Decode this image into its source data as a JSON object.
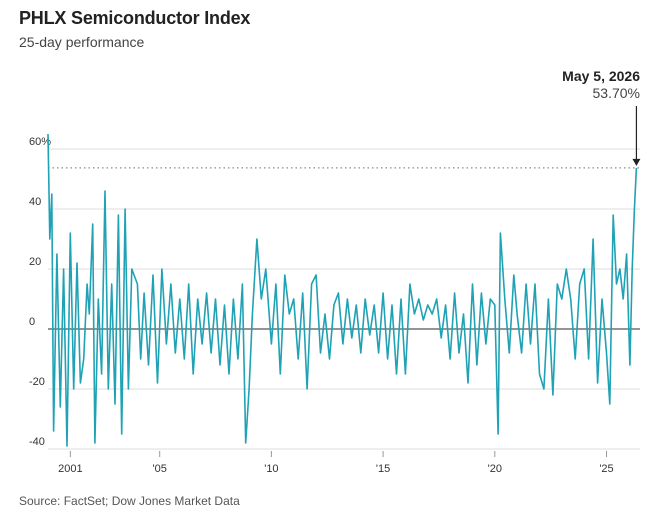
{
  "header": {
    "title": "PHLX Semiconductor Index",
    "subtitle": "25-day performance"
  },
  "footer": {
    "source": "Source: FactSet; Dow Jones Market Data"
  },
  "annotation": {
    "date": "May 5, 2026",
    "value": "53.70%"
  },
  "colors": {
    "line": "#1fa2b4",
    "grid": "#dcdcdc",
    "zero": "#555555",
    "reference": "#888888"
  },
  "chart_data": {
    "type": "line",
    "title": "PHLX Semiconductor Index",
    "subtitle": "25-day performance",
    "unit": "%",
    "x_ticks": [
      {
        "value": 2001,
        "label": "2001"
      },
      {
        "value": 2005,
        "label": "'05"
      },
      {
        "value": 2010,
        "label": "'10"
      },
      {
        "value": 2015,
        "label": "'15"
      },
      {
        "value": 2020,
        "label": "'20"
      },
      {
        "value": 2025,
        "label": "'25"
      }
    ],
    "y_ticks": [
      {
        "value": 60,
        "label": "60%"
      },
      {
        "value": 40,
        "label": "40"
      },
      {
        "value": 20,
        "label": "20"
      },
      {
        "value": 0,
        "label": "0"
      },
      {
        "value": -20,
        "label": "-20"
      },
      {
        "value": -40,
        "label": "-40"
      }
    ],
    "xlim": [
      2000.0,
      2026.5
    ],
    "ylim": [
      -40,
      60
    ],
    "reference_value": 53.7,
    "series": [
      {
        "values": [
          [
            2000.0,
            65
          ],
          [
            2000.08,
            30
          ],
          [
            2000.17,
            45
          ],
          [
            2000.25,
            -34
          ],
          [
            2000.4,
            25
          ],
          [
            2000.55,
            -26
          ],
          [
            2000.7,
            20
          ],
          [
            2000.85,
            -39
          ],
          [
            2001.0,
            32
          ],
          [
            2001.15,
            -20
          ],
          [
            2001.3,
            22
          ],
          [
            2001.45,
            -18
          ],
          [
            2001.6,
            -10
          ],
          [
            2001.75,
            15
          ],
          [
            2001.85,
            5
          ],
          [
            2002.0,
            35
          ],
          [
            2002.1,
            -38
          ],
          [
            2002.25,
            10
          ],
          [
            2002.4,
            -15
          ],
          [
            2002.55,
            46
          ],
          [
            2002.7,
            -20
          ],
          [
            2002.85,
            15
          ],
          [
            2003.0,
            -25
          ],
          [
            2003.15,
            38
          ],
          [
            2003.3,
            -35
          ],
          [
            2003.45,
            40
          ],
          [
            2003.6,
            -20
          ],
          [
            2003.75,
            20
          ],
          [
            2004.0,
            15
          ],
          [
            2004.15,
            -10
          ],
          [
            2004.3,
            12
          ],
          [
            2004.5,
            -12
          ],
          [
            2004.7,
            18
          ],
          [
            2004.9,
            -18
          ],
          [
            2005.1,
            20
          ],
          [
            2005.3,
            -5
          ],
          [
            2005.5,
            15
          ],
          [
            2005.7,
            -8
          ],
          [
            2005.9,
            10
          ],
          [
            2006.1,
            -10
          ],
          [
            2006.3,
            15
          ],
          [
            2006.5,
            -15
          ],
          [
            2006.7,
            10
          ],
          [
            2006.9,
            -5
          ],
          [
            2007.1,
            12
          ],
          [
            2007.3,
            -8
          ],
          [
            2007.5,
            10
          ],
          [
            2007.7,
            -12
          ],
          [
            2007.9,
            8
          ],
          [
            2008.1,
            -15
          ],
          [
            2008.3,
            10
          ],
          [
            2008.5,
            -10
          ],
          [
            2008.7,
            15
          ],
          [
            2008.85,
            -38
          ],
          [
            2009.0,
            -20
          ],
          [
            2009.15,
            5
          ],
          [
            2009.35,
            30
          ],
          [
            2009.55,
            10
          ],
          [
            2009.75,
            20
          ],
          [
            2010.0,
            -5
          ],
          [
            2010.2,
            15
          ],
          [
            2010.4,
            -15
          ],
          [
            2010.6,
            18
          ],
          [
            2010.8,
            5
          ],
          [
            2011.0,
            10
          ],
          [
            2011.2,
            -10
          ],
          [
            2011.4,
            12
          ],
          [
            2011.6,
            -20
          ],
          [
            2011.8,
            15
          ],
          [
            2012.0,
            18
          ],
          [
            2012.2,
            -8
          ],
          [
            2012.4,
            5
          ],
          [
            2012.6,
            -10
          ],
          [
            2012.8,
            8
          ],
          [
            2013.0,
            12
          ],
          [
            2013.2,
            -5
          ],
          [
            2013.4,
            10
          ],
          [
            2013.6,
            -3
          ],
          [
            2013.8,
            8
          ],
          [
            2014.0,
            -8
          ],
          [
            2014.2,
            10
          ],
          [
            2014.4,
            -2
          ],
          [
            2014.6,
            8
          ],
          [
            2014.8,
            -8
          ],
          [
            2015.0,
            12
          ],
          [
            2015.2,
            -10
          ],
          [
            2015.4,
            8
          ],
          [
            2015.6,
            -15
          ],
          [
            2015.8,
            10
          ],
          [
            2016.0,
            -15
          ],
          [
            2016.2,
            15
          ],
          [
            2016.4,
            5
          ],
          [
            2016.6,
            10
          ],
          [
            2016.8,
            3
          ],
          [
            2017.0,
            8
          ],
          [
            2017.2,
            5
          ],
          [
            2017.4,
            10
          ],
          [
            2017.6,
            -3
          ],
          [
            2017.8,
            8
          ],
          [
            2018.0,
            -10
          ],
          [
            2018.2,
            12
          ],
          [
            2018.4,
            -8
          ],
          [
            2018.6,
            5
          ],
          [
            2018.8,
            -18
          ],
          [
            2019.0,
            15
          ],
          [
            2019.2,
            -12
          ],
          [
            2019.4,
            12
          ],
          [
            2019.6,
            -5
          ],
          [
            2019.8,
            10
          ],
          [
            2020.0,
            8
          ],
          [
            2020.15,
            -35
          ],
          [
            2020.25,
            32
          ],
          [
            2020.45,
            10
          ],
          [
            2020.65,
            -8
          ],
          [
            2020.85,
            18
          ],
          [
            2021.0,
            5
          ],
          [
            2021.2,
            -8
          ],
          [
            2021.4,
            15
          ],
          [
            2021.6,
            -5
          ],
          [
            2021.8,
            15
          ],
          [
            2022.0,
            -15
          ],
          [
            2022.2,
            -20
          ],
          [
            2022.4,
            10
          ],
          [
            2022.6,
            -22
          ],
          [
            2022.8,
            15
          ],
          [
            2023.0,
            10
          ],
          [
            2023.2,
            20
          ],
          [
            2023.4,
            10
          ],
          [
            2023.6,
            -10
          ],
          [
            2023.8,
            15
          ],
          [
            2024.0,
            20
          ],
          [
            2024.2,
            -10
          ],
          [
            2024.4,
            30
          ],
          [
            2024.6,
            -18
          ],
          [
            2024.8,
            10
          ],
          [
            2025.0,
            -8
          ],
          [
            2025.15,
            -25
          ],
          [
            2025.3,
            38
          ],
          [
            2025.45,
            15
          ],
          [
            2025.6,
            20
          ],
          [
            2025.75,
            10
          ],
          [
            2025.9,
            25
          ],
          [
            2026.05,
            -12
          ],
          [
            2026.15,
            20
          ],
          [
            2026.25,
            40
          ],
          [
            2026.34,
            53.7
          ]
        ]
      }
    ]
  }
}
